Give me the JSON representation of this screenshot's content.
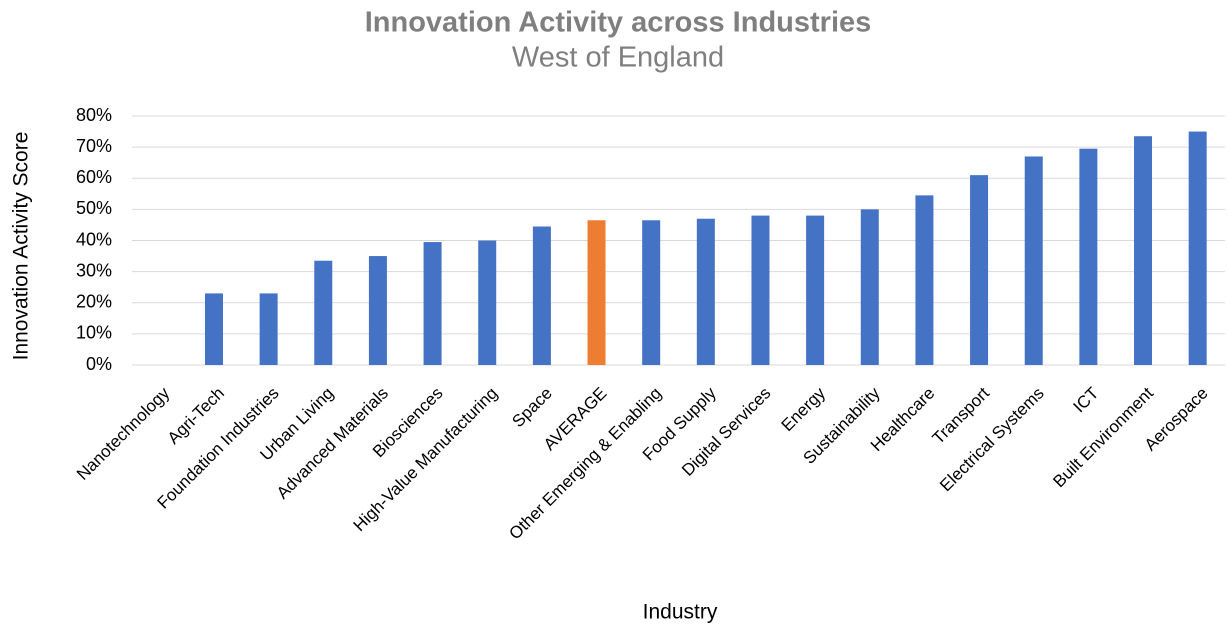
{
  "chart_data": {
    "type": "bar",
    "title": "Innovation Activity across Industries",
    "subtitle": "West of England",
    "x_label": "Industry",
    "y_label": "Innovation Activity Score",
    "categories": [
      "Nanotechnology",
      "Agri-Tech",
      "Foundation Industries",
      "Urban Living",
      "Advanced Materials",
      "Biosciences",
      "High-Value Manufacturing",
      "Space",
      "AVERAGE",
      "Other Emerging & Enabling",
      "Food Supply",
      "Digital Services",
      "Energy",
      "Sustainability",
      "Healthcare",
      "Transport",
      "Electrical Systems",
      "ICT",
      "Built Environment",
      "Aerospace"
    ],
    "values": [
      0,
      23,
      23,
      33.5,
      35,
      39.5,
      40,
      44.5,
      46.5,
      46.5,
      47,
      48,
      48,
      50,
      54.5,
      61,
      67,
      69.5,
      73.5,
      75
    ],
    "colors": [
      "#4472c4",
      "#4472c4",
      "#4472c4",
      "#4472c4",
      "#4472c4",
      "#4472c4",
      "#4472c4",
      "#4472c4",
      "#ed7d31",
      "#4472c4",
      "#4472c4",
      "#4472c4",
      "#4472c4",
      "#4472c4",
      "#4472c4",
      "#4472c4",
      "#4472c4",
      "#4472c4",
      "#4472c4",
      "#4472c4"
    ],
    "ylim": [
      0,
      80
    ],
    "yticks": [
      {
        "value": 0,
        "label": "0%"
      },
      {
        "value": 10,
        "label": "10%"
      },
      {
        "value": 20,
        "label": "20%"
      },
      {
        "value": 30,
        "label": "30%"
      },
      {
        "value": 40,
        "label": "40%"
      },
      {
        "value": 50,
        "label": "50%"
      },
      {
        "value": 60,
        "label": "60%"
      },
      {
        "value": 70,
        "label": "70%"
      },
      {
        "value": 80,
        "label": "80%"
      }
    ],
    "grid": true
  }
}
